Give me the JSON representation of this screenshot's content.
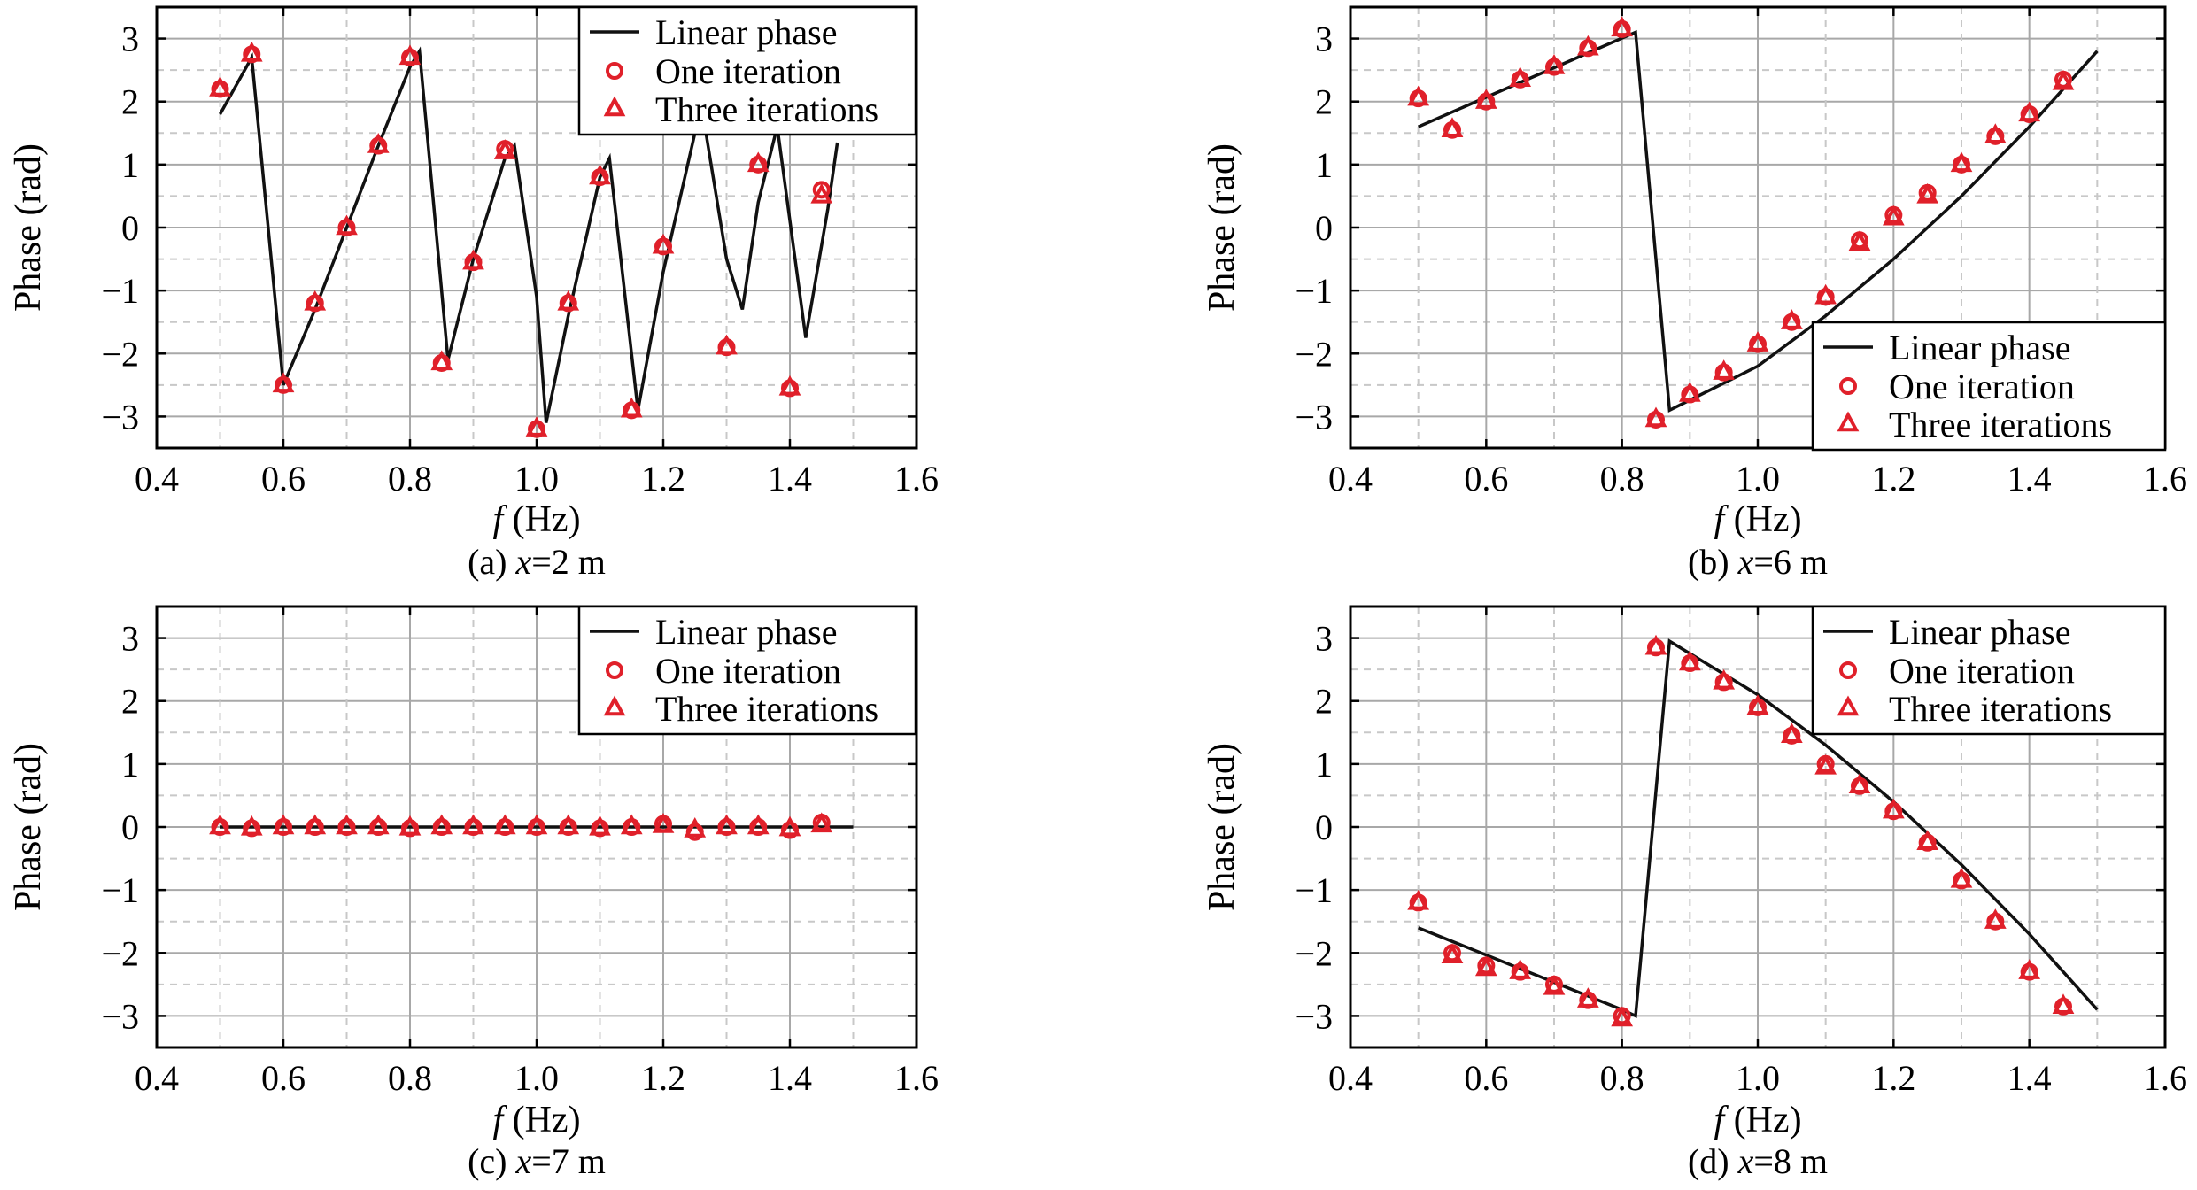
{
  "chart_data": [
    {
      "type": "line",
      "caption": "(a) x=2 m",
      "caption_prefix": "(a) ",
      "caption_var": "x",
      "caption_rest": "=2 m",
      "xlabel_var": "f",
      "xlabel_unit": " (Hz)",
      "ylabel": "Phase (rad)",
      "xlim": [
        0.4,
        1.6
      ],
      "ylim": [
        -3.5,
        3.5
      ],
      "xticks": [
        "0.4",
        "0.6",
        "0.8",
        "1.0",
        "1.2",
        "1.4",
        "1.6"
      ],
      "yticks": [
        "3",
        "2",
        "1",
        "0",
        "−1",
        "−2",
        "−3"
      ],
      "grid": true,
      "legend_position": "top-right",
      "legend": [
        "Linear phase",
        "One iteration",
        "Three iterations"
      ],
      "series": [
        {
          "name": "Linear phase",
          "x": [
            0.5,
            0.55,
            0.6,
            0.65,
            0.7,
            0.75,
            0.8,
            0.815,
            0.86,
            0.9,
            0.95,
            0.965,
            1.0,
            1.015,
            1.05,
            1.1,
            1.115,
            1.16,
            1.2,
            1.25,
            1.265,
            1.3,
            1.325,
            1.35,
            1.38,
            1.425,
            1.46,
            1.475
          ],
          "y": [
            1.8,
            2.7,
            -2.5,
            -1.3,
            0,
            1.3,
            2.55,
            2.8,
            -2.1,
            -0.5,
            1.1,
            1.3,
            -1.1,
            -3.1,
            -1.4,
            0.8,
            1.1,
            -2.9,
            -0.7,
            1.5,
            1.65,
            -0.5,
            -1.3,
            0.4,
            1.6,
            -1.75,
            0.3,
            1.35
          ]
        },
        {
          "name": "One iteration",
          "x": [
            0.5,
            0.55,
            0.6,
            0.65,
            0.7,
            0.75,
            0.8,
            0.85,
            0.9,
            0.95,
            1.0,
            1.05,
            1.1,
            1.15,
            1.2,
            1.25,
            1.3,
            1.35,
            1.4,
            1.45
          ],
          "y": [
            2.2,
            2.75,
            -2.5,
            -1.2,
            0,
            1.3,
            2.7,
            -2.15,
            -0.55,
            1.25,
            -3.2,
            -1.2,
            0.8,
            -2.9,
            -0.3,
            1.65,
            -1.9,
            1.0,
            -2.55,
            0.6
          ]
        },
        {
          "name": "Three iterations",
          "x": [
            0.5,
            0.55,
            0.6,
            0.65,
            0.7,
            0.75,
            0.8,
            0.85,
            0.9,
            0.95,
            1.0,
            1.05,
            1.1,
            1.15,
            1.2,
            1.25,
            1.3,
            1.35,
            1.4,
            1.45
          ],
          "y": [
            2.2,
            2.75,
            -2.5,
            -1.2,
            0,
            1.3,
            2.7,
            -2.15,
            -0.55,
            1.2,
            -3.2,
            -1.2,
            0.8,
            -2.9,
            -0.3,
            1.65,
            -1.9,
            1.0,
            -2.55,
            0.5
          ]
        }
      ]
    },
    {
      "type": "line",
      "caption": "(b) x=6 m",
      "caption_prefix": "(b) ",
      "caption_var": "x",
      "caption_rest": "=6 m",
      "xlabel_var": "f",
      "xlabel_unit": " (Hz)",
      "ylabel": "Phase (rad)",
      "xlim": [
        0.4,
        1.6
      ],
      "ylim": [
        -3.5,
        3.5
      ],
      "xticks": [
        "0.4",
        "0.6",
        "0.8",
        "1.0",
        "1.2",
        "1.4",
        "1.6"
      ],
      "yticks": [
        "3",
        "2",
        "1",
        "0",
        "−1",
        "−2",
        "−3"
      ],
      "grid": true,
      "legend_position": "bottom-right",
      "legend": [
        "Linear phase",
        "One iteration",
        "Three iterations"
      ],
      "series": [
        {
          "name": "Linear phase",
          "x": [
            0.5,
            0.82,
            0.87,
            1.0,
            1.1,
            1.2,
            1.3,
            1.4,
            1.5
          ],
          "y": [
            1.6,
            3.1,
            -2.9,
            -2.2,
            -1.4,
            -0.5,
            0.5,
            1.6,
            2.8
          ]
        },
        {
          "name": "One iteration",
          "x": [
            0.5,
            0.55,
            0.6,
            0.65,
            0.7,
            0.75,
            0.8,
            0.85,
            0.9,
            0.95,
            1.0,
            1.05,
            1.1,
            1.15,
            1.2,
            1.25,
            1.3,
            1.35,
            1.4,
            1.45
          ],
          "y": [
            2.05,
            1.55,
            2.0,
            2.35,
            2.55,
            2.85,
            3.15,
            -3.05,
            -2.65,
            -2.3,
            -1.85,
            -1.5,
            -1.1,
            -0.2,
            0.2,
            0.55,
            1.0,
            1.45,
            1.8,
            2.35
          ]
        },
        {
          "name": "Three iterations",
          "x": [
            0.5,
            0.55,
            0.6,
            0.65,
            0.7,
            0.75,
            0.8,
            0.85,
            0.9,
            0.95,
            1.0,
            1.05,
            1.1,
            1.15,
            1.2,
            1.25,
            1.3,
            1.35,
            1.4,
            1.45
          ],
          "y": [
            2.05,
            1.55,
            2.0,
            2.35,
            2.55,
            2.85,
            3.15,
            -3.05,
            -2.65,
            -2.3,
            -1.85,
            -1.5,
            -1.1,
            -0.25,
            0.15,
            0.5,
            1.0,
            1.45,
            1.8,
            2.3
          ]
        }
      ]
    },
    {
      "type": "line",
      "caption": "(c) x=7 m",
      "caption_prefix": "(c) ",
      "caption_var": "x",
      "caption_rest": "=7 m",
      "xlabel_var": "f",
      "xlabel_unit": " (Hz)",
      "ylabel": "Phase (rad)",
      "xlim": [
        0.4,
        1.6
      ],
      "ylim": [
        -3.5,
        3.5
      ],
      "xticks": [
        "0.4",
        "0.6",
        "0.8",
        "1.0",
        "1.2",
        "1.4",
        "1.6"
      ],
      "yticks": [
        "3",
        "2",
        "1",
        "0",
        "−1",
        "−2",
        "−3"
      ],
      "grid": true,
      "legend_position": "top-right",
      "legend": [
        "Linear phase",
        "One iteration",
        "Three iterations"
      ],
      "series": [
        {
          "name": "Linear phase",
          "x": [
            0.5,
            1.5
          ],
          "y": [
            0,
            0
          ]
        },
        {
          "name": "One iteration",
          "x": [
            0.5,
            0.55,
            0.6,
            0.65,
            0.7,
            0.75,
            0.8,
            0.85,
            0.9,
            0.95,
            1.0,
            1.05,
            1.1,
            1.15,
            1.2,
            1.25,
            1.3,
            1.35,
            1.4,
            1.45
          ],
          "y": [
            0,
            -0.02,
            0,
            0,
            0,
            0,
            -0.02,
            0,
            0,
            0,
            0,
            0,
            -0.02,
            0,
            0.05,
            -0.08,
            0,
            0,
            -0.05,
            0.07
          ]
        },
        {
          "name": "Three iterations",
          "x": [
            0.5,
            0.55,
            0.6,
            0.65,
            0.7,
            0.75,
            0.8,
            0.85,
            0.9,
            0.95,
            1.0,
            1.05,
            1.1,
            1.15,
            1.2,
            1.25,
            1.3,
            1.35,
            1.4,
            1.45
          ],
          "y": [
            0,
            -0.02,
            0,
            0,
            0,
            0,
            -0.02,
            0,
            0,
            0,
            0,
            0,
            -0.02,
            0,
            0.02,
            -0.05,
            0,
            0,
            -0.03,
            0.03
          ]
        }
      ]
    },
    {
      "type": "line",
      "caption": "(d) x=8 m",
      "caption_prefix": "(d) ",
      "caption_var": "x",
      "caption_rest": "=8 m",
      "xlabel_var": "f",
      "xlabel_unit": " (Hz)",
      "ylabel": "Phase (rad)",
      "xlim": [
        0.4,
        1.6
      ],
      "ylim": [
        -3.5,
        3.5
      ],
      "xticks": [
        "0.4",
        "0.6",
        "0.8",
        "1.0",
        "1.2",
        "1.4",
        "1.6"
      ],
      "yticks": [
        "3",
        "2",
        "1",
        "0",
        "−1",
        "−2",
        "−3"
      ],
      "grid": true,
      "legend_position": "top-right",
      "legend": [
        "Linear phase",
        "One iteration",
        "Three iterations"
      ],
      "series": [
        {
          "name": "Linear phase",
          "x": [
            0.5,
            0.8,
            0.82,
            0.87,
            1.0,
            1.1,
            1.2,
            1.3,
            1.4,
            1.5
          ],
          "y": [
            -1.6,
            -2.9,
            -3.0,
            2.95,
            2.1,
            1.3,
            0.4,
            -0.6,
            -1.7,
            -2.9
          ]
        },
        {
          "name": "One iteration",
          "x": [
            0.5,
            0.55,
            0.6,
            0.65,
            0.7,
            0.75,
            0.8,
            0.85,
            0.9,
            0.95,
            1.0,
            1.05,
            1.1,
            1.15,
            1.2,
            1.25,
            1.3,
            1.35,
            1.4,
            1.45
          ],
          "y": [
            -1.2,
            -2.0,
            -2.2,
            -2.3,
            -2.5,
            -2.75,
            -3.0,
            2.85,
            2.6,
            2.3,
            1.9,
            1.45,
            1.0,
            0.65,
            0.25,
            -0.25,
            -0.85,
            -1.5,
            -2.3,
            -2.85
          ]
        },
        {
          "name": "Three iterations",
          "x": [
            0.5,
            0.55,
            0.6,
            0.65,
            0.7,
            0.75,
            0.8,
            0.85,
            0.9,
            0.95,
            1.0,
            1.05,
            1.1,
            1.15,
            1.2,
            1.25,
            1.3,
            1.35,
            1.4,
            1.45
          ],
          "y": [
            -1.2,
            -2.05,
            -2.25,
            -2.3,
            -2.55,
            -2.75,
            -3.05,
            2.85,
            2.6,
            2.3,
            1.9,
            1.45,
            0.95,
            0.65,
            0.25,
            -0.25,
            -0.85,
            -1.5,
            -2.3,
            -2.85
          ]
        }
      ]
    }
  ]
}
